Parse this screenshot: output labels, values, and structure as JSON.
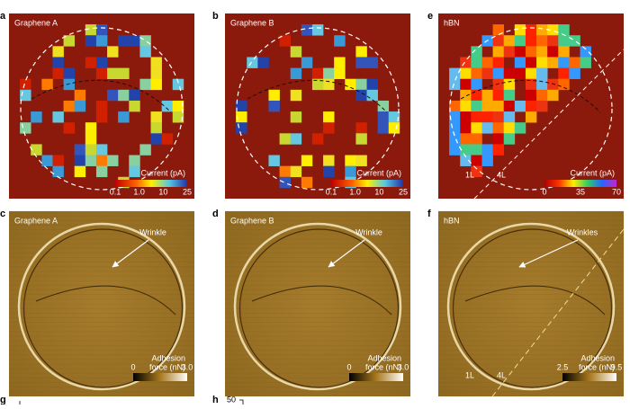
{
  "panels": [
    {
      "letter": "a",
      "title": "Graphene A",
      "colorbar": {
        "label": "Current (pA)",
        "ticks": [
          "0.1",
          "1.0",
          "10",
          "25"
        ]
      }
    },
    {
      "letter": "b",
      "title": "Graphene B",
      "colorbar": {
        "label": "Current (pA)",
        "ticks": [
          "0.1",
          "1.0",
          "10",
          "25"
        ]
      }
    },
    {
      "letter": "e",
      "title": "hBN",
      "annotations": [
        "1L",
        "4L"
      ],
      "colorbar": {
        "label": "Current (pA)",
        "ticks": [
          "0",
          "35",
          "70"
        ]
      }
    },
    {
      "letter": "c",
      "title": "Graphene A",
      "annotations": [
        "Wrinkle"
      ],
      "colorbar": {
        "label": [
          "Adhesion",
          "force (nN)"
        ],
        "ticks": [
          "0",
          "3.0"
        ]
      }
    },
    {
      "letter": "d",
      "title": "Graphene B",
      "annotations": [
        "Wrinkle"
      ],
      "colorbar": {
        "label": [
          "Adhesion",
          "force (nN)"
        ],
        "ticks": [
          "0",
          "3.0"
        ]
      }
    },
    {
      "letter": "f",
      "title": "hBN",
      "annotations": [
        "Wrinkles",
        "1L",
        "4L"
      ],
      "colorbar": {
        "label": [
          "Adhesion",
          "force (nN)"
        ],
        "ticks": [
          "2.5",
          "9.5"
        ]
      }
    }
  ],
  "bottom_panels": [
    {
      "letter": "g"
    },
    {
      "letter": "h",
      "tick": "50"
    }
  ]
}
